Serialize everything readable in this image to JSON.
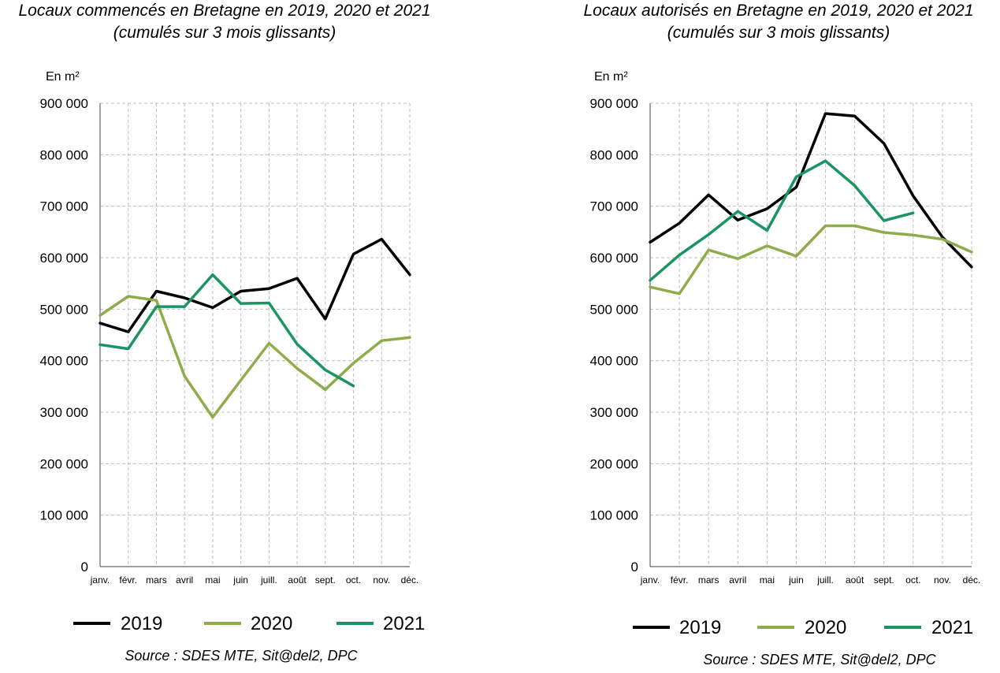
{
  "chart_data": [
    {
      "type": "line",
      "title": "Locaux commencés en Bretagne en 2019, 2020 et 2021",
      "subtitle": "(cumulés sur 3 mois glissants)",
      "ylabel": "En m²",
      "ylim": [
        0,
        900000
      ],
      "yticks": [
        0,
        100000,
        200000,
        300000,
        400000,
        500000,
        600000,
        700000,
        800000,
        900000
      ],
      "ytick_labels": [
        "0",
        "100 000",
        "200 000",
        "300 000",
        "400 000",
        "500 000",
        "600 000",
        "700 000",
        "800 000",
        "900 000"
      ],
      "categories": [
        "janv.",
        "févr.",
        "mars",
        "avril",
        "mai",
        "juin",
        "juill.",
        "août",
        "sept.",
        "oct.",
        "nov.",
        "déc."
      ],
      "grid": true,
      "legend_position": "bottom",
      "series": [
        {
          "name": "2019",
          "color": "#000000",
          "values": [
            473000,
            456000,
            535000,
            522000,
            503000,
            535000,
            540000,
            560000,
            481000,
            607000,
            636000,
            567000
          ]
        },
        {
          "name": "2020",
          "color": "#8fac4b",
          "values": [
            488000,
            525000,
            517000,
            370000,
            290000,
            362000,
            434000,
            385000,
            344000,
            395000,
            439000,
            445000
          ]
        },
        {
          "name": "2021",
          "color": "#1b9463",
          "values": [
            431000,
            423000,
            505000,
            505000,
            567000,
            511000,
            512000,
            432000,
            382000,
            351000,
            null,
            null
          ]
        }
      ],
      "source": "Source : SDES MTE, Sit@del2, DPC"
    },
    {
      "type": "line",
      "title": "Locaux autorisés en Bretagne en 2019, 2020 et 2021",
      "subtitle": "(cumulés sur 3 mois glissants)",
      "ylabel": "En m²",
      "ylim": [
        0,
        900000
      ],
      "yticks": [
        0,
        100000,
        200000,
        300000,
        400000,
        500000,
        600000,
        700000,
        800000,
        900000
      ],
      "ytick_labels": [
        "0",
        "100 000",
        "200 000",
        "300 000",
        "400 000",
        "500 000",
        "600 000",
        "700 000",
        "800 000",
        "900 000"
      ],
      "categories": [
        "janv.",
        "févr.",
        "mars",
        "avril",
        "mai",
        "juin",
        "juill.",
        "août",
        "sept.",
        "oct.",
        "nov.",
        "déc."
      ],
      "grid": true,
      "legend_position": "bottom",
      "series": [
        {
          "name": "2019",
          "color": "#000000",
          "values": [
            630000,
            667000,
            722000,
            673000,
            695000,
            737000,
            880000,
            875000,
            822000,
            720000,
            640000,
            582000
          ]
        },
        {
          "name": "2020",
          "color": "#8fac4b",
          "values": [
            543000,
            530000,
            615000,
            598000,
            623000,
            603000,
            662000,
            662000,
            649000,
            644000,
            636000,
            611000
          ]
        },
        {
          "name": "2021",
          "color": "#1b9463",
          "values": [
            556000,
            605000,
            645000,
            690000,
            653000,
            757000,
            788000,
            740000,
            672000,
            687000,
            null,
            null
          ]
        }
      ],
      "source": "Source : SDES MTE, Sit@del2, DPC"
    }
  ]
}
